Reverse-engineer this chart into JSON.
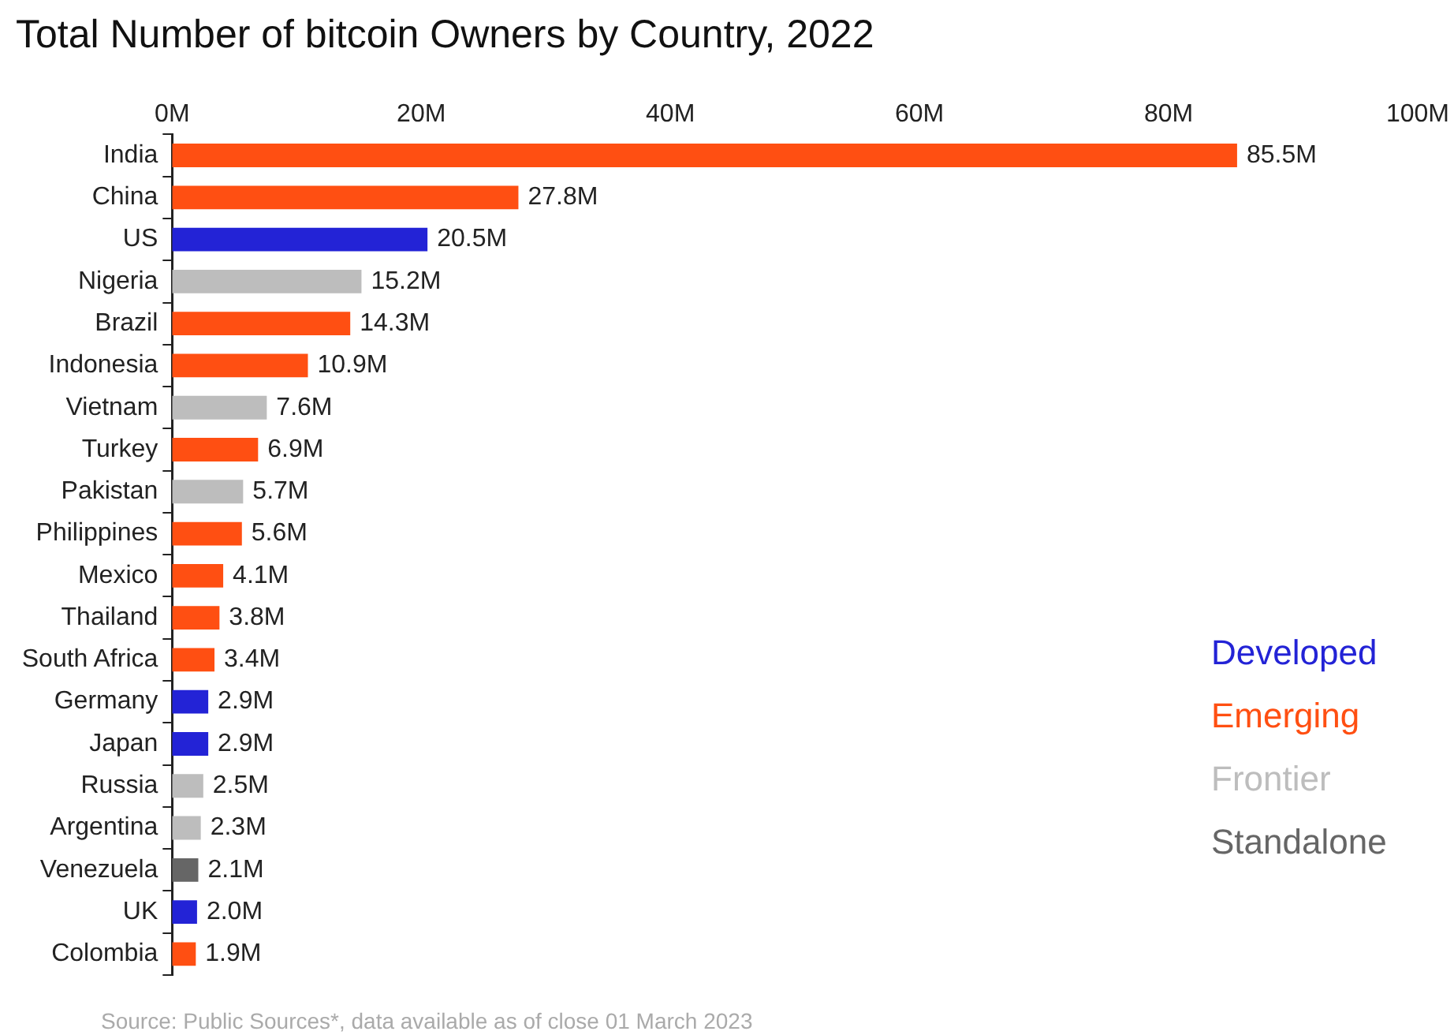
{
  "chart_data": {
    "type": "bar",
    "orientation": "horizontal",
    "stacked": true,
    "title": "Total Number of bitcoin Owners by Country, 2022",
    "categories": [
      "India",
      "China",
      "US",
      "Nigeria",
      "Brazil",
      "Indonesia",
      "Vietnam",
      "Turkey",
      "Pakistan",
      "Philippines",
      "Mexico",
      "Thailand",
      "South Africa",
      "Germany",
      "Japan",
      "Russia",
      "Argentina",
      "Venezuela",
      "UK",
      "Colombia"
    ],
    "series": [
      {
        "name": "Developed",
        "color": "#2323d6",
        "values": [
          null,
          null,
          20.5,
          null,
          null,
          null,
          null,
          null,
          null,
          null,
          null,
          null,
          null,
          2.9,
          2.9,
          null,
          null,
          null,
          2.0,
          null
        ],
        "value_labels": [
          null,
          null,
          "20.5M",
          null,
          null,
          null,
          null,
          null,
          null,
          null,
          null,
          null,
          null,
          "2.9M",
          "2.9M",
          null,
          null,
          null,
          "2.0M",
          null
        ]
      },
      {
        "name": "Emerging",
        "color": "#ff4f12",
        "values": [
          85.5,
          27.8,
          null,
          null,
          14.3,
          10.9,
          null,
          6.9,
          null,
          5.6,
          4.1,
          3.8,
          3.4,
          null,
          null,
          null,
          null,
          null,
          null,
          1.9
        ],
        "value_labels": [
          "85.5M",
          "27.8M",
          null,
          null,
          "14.3M",
          "10.9M",
          null,
          "6.9M",
          null,
          "5.6M",
          "4.1M",
          "3.8M",
          "3.4M",
          null,
          null,
          null,
          null,
          null,
          null,
          "1.9M"
        ]
      },
      {
        "name": "Frontier",
        "color": "#bdbdbd",
        "values": [
          null,
          null,
          null,
          15.2,
          null,
          null,
          7.6,
          null,
          5.7,
          null,
          null,
          null,
          null,
          null,
          null,
          2.5,
          2.3,
          null,
          null,
          null
        ],
        "value_labels": [
          null,
          null,
          null,
          "15.2M",
          null,
          null,
          "7.6M",
          null,
          "5.7M",
          null,
          null,
          null,
          null,
          null,
          null,
          "2.5M",
          "2.3M",
          null,
          null,
          null
        ]
      },
      {
        "name": "Standalone",
        "color": "#666666",
        "values": [
          null,
          null,
          null,
          null,
          null,
          null,
          null,
          null,
          null,
          null,
          null,
          null,
          null,
          null,
          null,
          null,
          null,
          2.1,
          null,
          null
        ],
        "value_labels": [
          null,
          null,
          null,
          null,
          null,
          null,
          null,
          null,
          null,
          null,
          null,
          null,
          null,
          null,
          null,
          null,
          null,
          "2.1M",
          null,
          null
        ]
      }
    ],
    "xlim": [
      0,
      100
    ],
    "xticks": [
      {
        "value": 0,
        "label": "0M"
      },
      {
        "value": 20,
        "label": "20M"
      },
      {
        "value": 40,
        "label": "40M"
      },
      {
        "value": 60,
        "label": "60M"
      },
      {
        "value": 80,
        "label": "80M"
      },
      {
        "value": 100,
        "label": "100M"
      }
    ],
    "grid": false,
    "legend": "right",
    "annotations": [
      "Source: Public Sources*, data available as of close 01 March 2023"
    ]
  }
}
